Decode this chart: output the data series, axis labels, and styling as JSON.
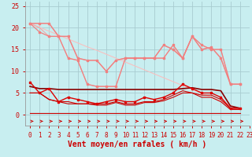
{
  "title": "",
  "xlabel": "Vent moyen/en rafales ( km/h )",
  "bg_color": "#c8eef0",
  "grid_color": "#a8ccd0",
  "xlim": [
    -0.5,
    23
  ],
  "ylim": [
    -2.5,
    26
  ],
  "yticks": [
    0,
    5,
    10,
    15,
    20,
    25
  ],
  "xticks": [
    0,
    1,
    2,
    3,
    4,
    5,
    6,
    7,
    8,
    9,
    10,
    11,
    12,
    13,
    14,
    15,
    16,
    17,
    18,
    19,
    20,
    21,
    22,
    23
  ],
  "lines": [
    {
      "name": "max_rafales_pink_marker",
      "y": [
        21,
        21,
        21,
        18,
        18,
        13,
        12.5,
        12.5,
        10,
        12.5,
        13,
        13,
        13,
        13,
        16,
        15,
        13,
        18,
        15,
        15.5,
        13,
        7,
        7
      ],
      "color": "#f08080",
      "lw": 1.0,
      "marker": "s",
      "ms": 2.0,
      "zorder": 4
    },
    {
      "name": "upper_envelope",
      "y": [
        21,
        21,
        21,
        18,
        18,
        13,
        12.5,
        12.5,
        10,
        12.5,
        13,
        13,
        13,
        13,
        16,
        15,
        13,
        18,
        15,
        15.5,
        13,
        7,
        7
      ],
      "color": "#f4a0a0",
      "lw": 0.8,
      "marker": null,
      "ms": 0,
      "zorder": 2
    },
    {
      "name": "diagonal_line",
      "y": [
        21,
        20.1,
        19.2,
        18.3,
        17.4,
        16.5,
        15.6,
        14.8,
        13.9,
        13.0,
        12.1,
        11.2,
        10.3,
        9.4,
        8.5,
        7.6,
        6.7,
        5.8,
        4.9,
        4.0,
        3.1,
        2.2,
        1.3
      ],
      "color": "#f8c0c0",
      "lw": 0.8,
      "marker": null,
      "ms": 0,
      "zorder": 2
    },
    {
      "name": "mid_pink_marker",
      "y": [
        21,
        19,
        18,
        18,
        13,
        12.5,
        7,
        6.5,
        6.5,
        6.5,
        13,
        13,
        13,
        13,
        13,
        16,
        13,
        18,
        16,
        15,
        15,
        7,
        7
      ],
      "color": "#f08080",
      "lw": 0.9,
      "marker": "s",
      "ms": 2.0,
      "zorder": 3
    },
    {
      "name": "lower_pink_no_marker",
      "y": [
        21,
        20,
        18,
        18,
        13,
        12.5,
        7,
        6.5,
        6.5,
        6.5,
        13,
        13,
        13,
        13,
        13,
        16,
        13,
        18,
        16,
        15,
        15,
        7,
        7
      ],
      "color": "#f4a8a8",
      "lw": 0.8,
      "marker": null,
      "ms": 0,
      "zorder": 2
    },
    {
      "name": "wind_speed_dark_red_marker",
      "y": [
        7.5,
        5,
        6,
        3,
        4,
        3.5,
        3,
        2.5,
        3,
        3.5,
        3,
        3,
        4,
        3.5,
        4,
        5,
        7,
        6,
        5,
        5,
        4,
        1.5,
        1.5
      ],
      "color": "#dd0000",
      "lw": 1.0,
      "marker": "s",
      "ms": 2.0,
      "zorder": 5
    },
    {
      "name": "flat_dark_line",
      "y": [
        6.5,
        6,
        6,
        5.8,
        5.8,
        5.8,
        5.8,
        5.8,
        5.8,
        5.8,
        5.8,
        5.8,
        5.8,
        5.8,
        5.8,
        5.8,
        6,
        6.2,
        5.8,
        5.8,
        5.5,
        2,
        1.5
      ],
      "color": "#880000",
      "lw": 1.2,
      "marker": null,
      "ms": 0,
      "zorder": 4
    },
    {
      "name": "lower_red_no_marker_1",
      "y": [
        5,
        5,
        3.5,
        3,
        3,
        2.5,
        2.5,
        2.5,
        2.5,
        3,
        2.5,
        2.5,
        3,
        3,
        3.5,
        4.5,
        5.5,
        5,
        4.5,
        4.5,
        3.5,
        1.5,
        1.5
      ],
      "color": "#cc0000",
      "lw": 0.8,
      "marker": null,
      "ms": 0,
      "zorder": 3
    },
    {
      "name": "lower_red_no_marker_2",
      "y": [
        5,
        5,
        3.5,
        3,
        2.5,
        2.5,
        2.5,
        2.2,
        2.2,
        2.8,
        2.2,
        2.2,
        2.8,
        2.8,
        3.2,
        4,
        5,
        5,
        4,
        4,
        3,
        1.2,
        1.2
      ],
      "color": "#cc0000",
      "lw": 0.8,
      "marker": null,
      "ms": 0,
      "zorder": 3
    },
    {
      "name": "baseline",
      "y": [
        0.3,
        0.3,
        0.3,
        0.3,
        0.3,
        0.3,
        0.3,
        0.3,
        0.3,
        0.3,
        0.3,
        0.3,
        0.3,
        0.3,
        0.3,
        0.3,
        0.3,
        0.3,
        0.3,
        0.3,
        0.3,
        0.3,
        0.3
      ],
      "color": "#cc0000",
      "lw": 0.8,
      "marker": null,
      "ms": 0,
      "zorder": 2
    }
  ],
  "arrow_color": "#cc0000",
  "xlabel_color": "#cc0000",
  "xlabel_fontsize": 7,
  "tick_fontsize": 6,
  "tick_color": "#cc0000"
}
